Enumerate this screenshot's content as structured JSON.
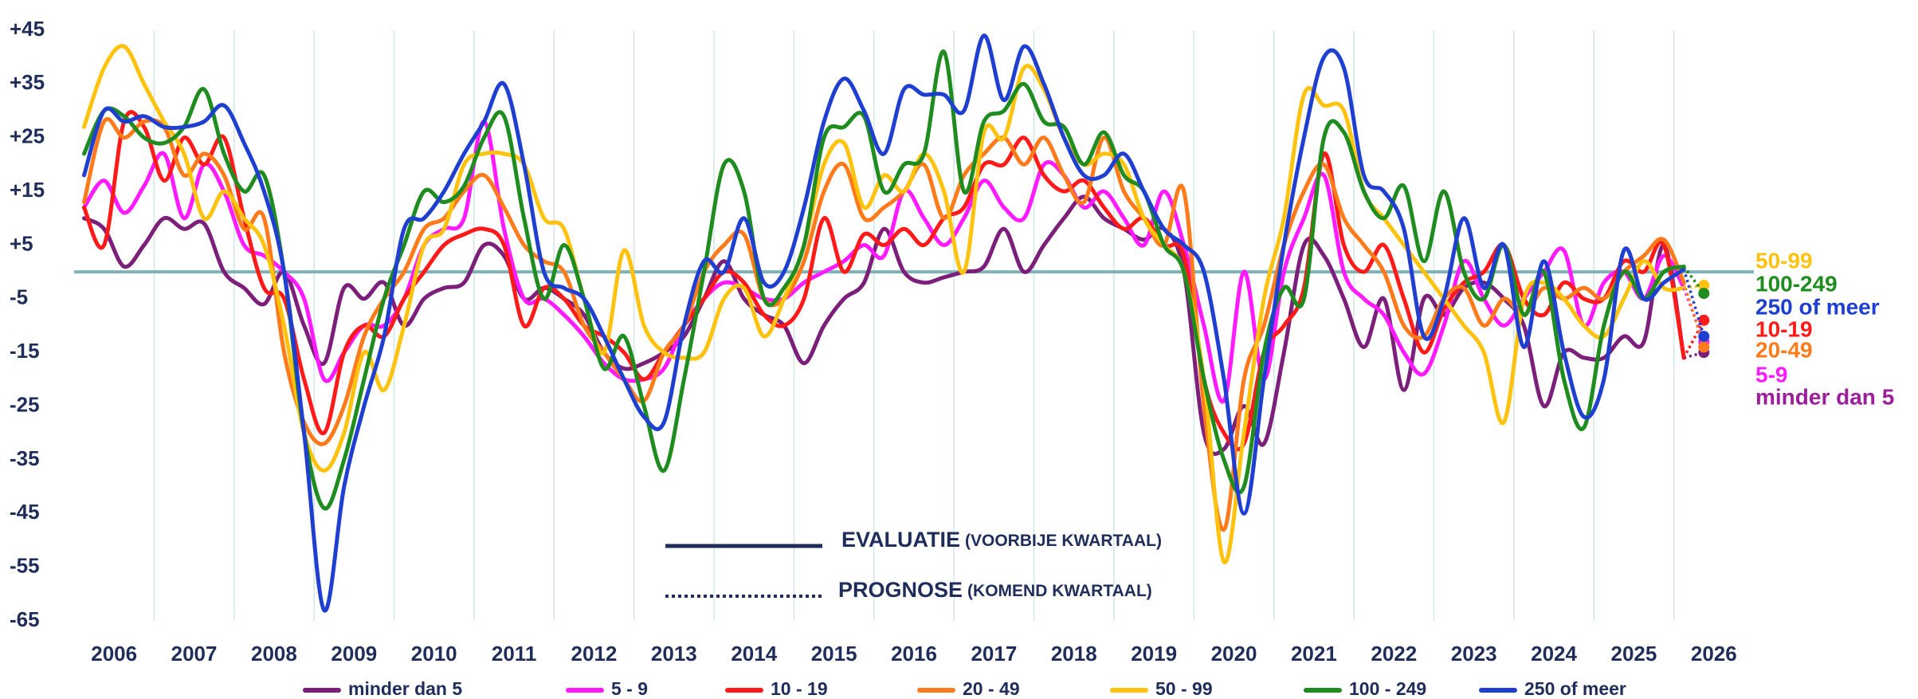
{
  "chart_data": {
    "type": "line",
    "x": [
      2006.125,
      2006.375,
      2006.625,
      2006.875,
      2007.125,
      2007.375,
      2007.625,
      2007.875,
      2008.125,
      2008.375,
      2008.625,
      2008.875,
      2009.125,
      2009.375,
      2009.625,
      2009.875,
      2010.125,
      2010.375,
      2010.625,
      2010.875,
      2011.125,
      2011.375,
      2011.625,
      2011.875,
      2012.125,
      2012.375,
      2012.625,
      2012.875,
      2013.125,
      2013.375,
      2013.625,
      2013.875,
      2014.125,
      2014.375,
      2014.625,
      2014.875,
      2015.125,
      2015.375,
      2015.625,
      2015.875,
      2016.125,
      2016.375,
      2016.625,
      2016.875,
      2017.125,
      2017.375,
      2017.625,
      2017.875,
      2018.125,
      2018.375,
      2018.625,
      2018.875,
      2019.125,
      2019.375,
      2019.625,
      2019.875,
      2020.125,
      2020.375,
      2020.625,
      2020.875,
      2021.125,
      2021.375,
      2021.625,
      2021.875,
      2022.125,
      2022.375,
      2022.625,
      2022.875,
      2023.125,
      2023.375,
      2023.625,
      2023.875,
      2024.125,
      2024.375,
      2024.625,
      2024.875,
      2025.125,
      2025.375,
      2025.625,
      2025.875,
      2026.125
    ],
    "forecast_x": 2026.375,
    "xlim": [
      2006,
      2027
    ],
    "xticks": [
      2006,
      2007,
      2008,
      2009,
      2010,
      2011,
      2012,
      2013,
      2014,
      2015,
      2016,
      2017,
      2018,
      2019,
      2020,
      2021,
      2022,
      2023,
      2024,
      2025,
      2026
    ],
    "ylim": [
      -65,
      45
    ],
    "yticks": [
      {
        "value": 45,
        "label": "+45"
      },
      {
        "value": 35,
        "label": "+35"
      },
      {
        "value": 25,
        "label": "+25"
      },
      {
        "value": 15,
        "label": "+15"
      },
      {
        "value": 5,
        "label": "+5"
      },
      -5,
      -15,
      -25,
      -35,
      -45,
      -55,
      -65
    ],
    "grid": true,
    "series": [
      {
        "name": "minder dan 5",
        "color": "#7b1f7b",
        "values": [
          10,
          8,
          1,
          5,
          10,
          8,
          9,
          0,
          -3,
          -6,
          0,
          -10,
          -17,
          -3,
          -5,
          -2,
          -10,
          -5,
          -3,
          -2,
          5,
          3,
          -5,
          -3,
          -5,
          -8,
          -15,
          -18,
          -17,
          -15,
          -12,
          -5,
          2,
          -5,
          -8,
          -10,
          -17,
          -10,
          -5,
          -2,
          8,
          0,
          -2,
          -1,
          0,
          1,
          8,
          0,
          5,
          10,
          14,
          10,
          8,
          6,
          8,
          0,
          -30,
          -33,
          -25,
          -32,
          -15,
          5,
          3,
          -5,
          -14,
          -5,
          -22,
          -5,
          -8,
          -3,
          -2,
          -5,
          -10,
          -25,
          -15,
          -16,
          -16,
          -12,
          -13,
          5,
          -16
        ],
        "forecast": -15
      },
      {
        "name": "5 - 9",
        "color": "#ff1aff",
        "values": [
          12,
          17,
          11,
          16,
          22,
          10,
          20,
          15,
          5,
          3,
          0,
          -5,
          -20,
          -15,
          -10,
          -10,
          -5,
          5,
          8,
          10,
          28,
          8,
          -5,
          -5,
          -8,
          -12,
          -17,
          -20,
          -20,
          -18,
          -10,
          -5,
          -2,
          -3,
          -5,
          -5,
          -2,
          0,
          2,
          5,
          3,
          15,
          10,
          5,
          10,
          17,
          12,
          10,
          20,
          18,
          12,
          15,
          10,
          5,
          15,
          5,
          -10,
          -24,
          0,
          -20,
          0,
          10,
          18,
          0,
          -5,
          -8,
          -15,
          -19,
          -10,
          2,
          -5,
          -10,
          -5,
          0,
          4,
          -10,
          -2,
          0,
          -5,
          3,
          -3
        ],
        "forecast": -13
      },
      {
        "name": "10 - 19",
        "color": "#ff1a1a",
        "values": [
          12,
          5,
          28,
          27,
          17,
          25,
          20,
          25,
          10,
          -3,
          -5,
          -20,
          -30,
          -15,
          -10,
          -12,
          -5,
          0,
          5,
          7,
          8,
          5,
          -10,
          -3,
          -5,
          -10,
          -12,
          -15,
          -20,
          -15,
          -10,
          -5,
          0,
          -2,
          -8,
          -10,
          -5,
          10,
          0,
          7,
          5,
          8,
          5,
          10,
          12,
          20,
          20,
          25,
          18,
          15,
          17,
          12,
          8,
          10,
          5,
          3,
          -20,
          -30,
          -32,
          -15,
          -10,
          -3,
          22,
          5,
          0,
          5,
          -5,
          -15,
          -7,
          -2,
          0,
          5,
          -5,
          -8,
          -2,
          -5,
          -5,
          2,
          0,
          5,
          -16
        ],
        "forecast": -9
      },
      {
        "name": "20 - 49",
        "color": "#ff7a1a",
        "values": [
          13,
          28,
          25,
          28,
          27,
          18,
          22,
          18,
          8,
          10,
          -15,
          -28,
          -32,
          -25,
          -12,
          -5,
          0,
          8,
          10,
          15,
          18,
          12,
          5,
          2,
          0,
          -10,
          -15,
          -20,
          -24,
          -15,
          -10,
          0,
          5,
          7,
          -5,
          -5,
          2,
          15,
          20,
          10,
          12,
          15,
          20,
          10,
          18,
          22,
          25,
          20,
          25,
          18,
          13,
          25,
          15,
          10,
          5,
          15,
          -25,
          -48,
          -20,
          -10,
          5,
          15,
          20,
          10,
          5,
          0,
          -10,
          -12,
          -5,
          -3,
          -10,
          -5,
          -8,
          -3,
          -5,
          -3,
          -5,
          0,
          3,
          6,
          -2
        ],
        "forecast": -14
      },
      {
        "name": "50 - 99",
        "color": "#ffc20e",
        "values": [
          27,
          38,
          42,
          35,
          28,
          22,
          10,
          15,
          10,
          5,
          -10,
          -30,
          -37,
          -30,
          -15,
          -22,
          -10,
          5,
          8,
          20,
          22,
          22,
          20,
          10,
          8,
          -5,
          -15,
          4,
          -10,
          -15,
          -16,
          -15,
          -5,
          -3,
          -12,
          -5,
          5,
          20,
          24,
          12,
          18,
          15,
          22,
          15,
          0,
          26,
          25,
          38,
          34,
          25,
          20,
          22,
          20,
          10,
          5,
          0,
          -20,
          -54,
          -30,
          -5,
          10,
          33,
          31,
          30,
          15,
          10,
          5,
          0,
          -5,
          -10,
          -15,
          -28,
          -5,
          -2,
          -5,
          -10,
          -12,
          -5,
          2,
          -3,
          -3
        ],
        "forecast": -2.5
      },
      {
        "name": "100 - 249",
        "color": "#1e8c1e",
        "values": [
          22,
          30,
          29,
          25,
          24,
          27,
          34,
          22,
          15,
          18,
          0,
          -30,
          -44,
          -35,
          -20,
          -5,
          5,
          15,
          13,
          16,
          25,
          29,
          10,
          -5,
          5,
          -5,
          -18,
          -12,
          -25,
          -37,
          -20,
          0,
          20,
          15,
          -5,
          -3,
          5,
          25,
          27,
          29,
          15,
          20,
          22,
          41,
          15,
          28,
          30,
          35,
          28,
          27,
          20,
          26,
          18,
          15,
          5,
          0,
          -20,
          -35,
          -40,
          -15,
          -3,
          -5,
          25,
          26,
          15,
          10,
          16,
          2,
          15,
          0,
          -5,
          5,
          -8,
          0,
          -20,
          -29,
          -10,
          0,
          -5,
          0,
          1
        ],
        "forecast": -4
      },
      {
        "name": "250 of meer",
        "color": "#1f3fd1",
        "values": [
          18,
          30,
          28,
          29,
          27,
          27,
          28,
          31,
          24,
          15,
          0,
          -30,
          -63,
          -40,
          -25,
          -12,
          8,
          10,
          15,
          22,
          28,
          35,
          20,
          0,
          -3,
          -5,
          -12,
          -20,
          -27,
          -28,
          -10,
          2,
          0,
          10,
          -2,
          0,
          12,
          28,
          36,
          30,
          22,
          34,
          33,
          33,
          30,
          44,
          32,
          42,
          35,
          25,
          18,
          18,
          22,
          15,
          8,
          5,
          0,
          -20,
          -45,
          -20,
          5,
          25,
          40,
          38,
          18,
          15,
          8,
          -12,
          -5,
          10,
          -3,
          5,
          -14,
          2,
          -15,
          -27,
          -20,
          4,
          -5,
          -2,
          0.5
        ],
        "forecast": -12
      }
    ],
    "style_legend": [
      {
        "title": "EVALUATIE",
        "note": "(VOORBIJE KWARTAAL)"
      },
      {
        "title": "PROGNOSE",
        "note": "(KOMEND KWARTAAL)"
      }
    ],
    "end_labels": [
      {
        "text": "50-99",
        "color": "#ffc20e"
      },
      {
        "text": "100-249",
        "color": "#1e8c1e"
      },
      {
        "text": "250 of meer",
        "color": "#1f3fd1"
      },
      {
        "text": "10-19",
        "color": "#ff1a1a"
      },
      {
        "text": "20-49",
        "color": "#ff7a1a"
      },
      {
        "text": "5-9",
        "color": "#ff1aff"
      },
      {
        "text": "minder dan 5",
        "color": "#9b1f9b"
      }
    ]
  }
}
